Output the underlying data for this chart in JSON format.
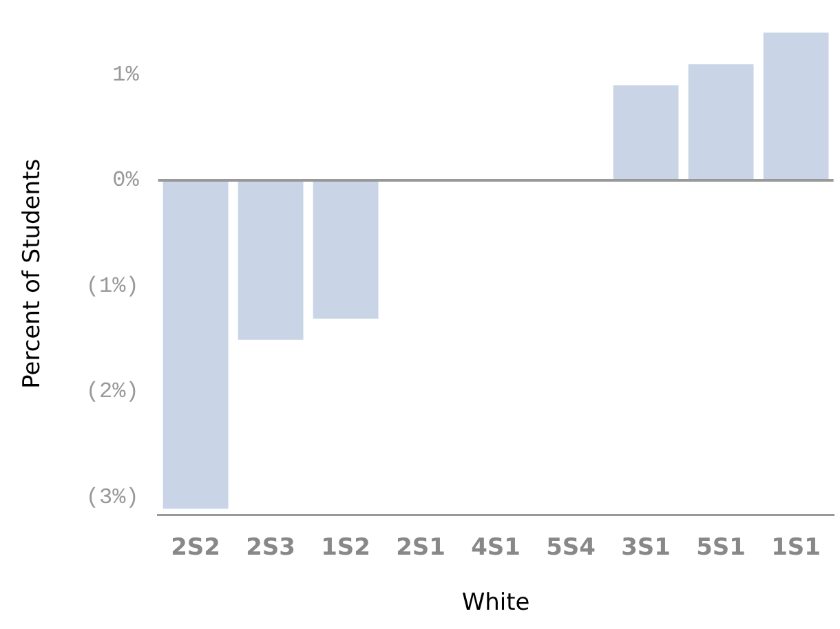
{
  "chart_data": {
    "type": "bar",
    "xlabel": "White",
    "ylabel": "Percent of Students",
    "categories": [
      "2S2",
      "2S3",
      "1S2",
      "2S1",
      "4S1",
      "5S4",
      "3S1",
      "5S1",
      "1S1"
    ],
    "values": [
      -3.11,
      -1.51,
      -1.31,
      0,
      0,
      0,
      0.9,
      1.1,
      1.4
    ],
    "color": "#c9d5e6",
    "ylim": [
      -3.17,
      1.4
    ],
    "yticks": [
      {
        "value": -3,
        "label": "(3%)"
      },
      {
        "value": -2,
        "label": "(2%)"
      },
      {
        "value": -1,
        "label": "(1%)"
      },
      {
        "value": 0,
        "label": "0%"
      },
      {
        "value": 1,
        "label": "1%"
      }
    ],
    "ref_lines": [
      {
        "axis": "y",
        "value": 0,
        "color": "#999999"
      }
    ],
    "grid": false,
    "legend": false
  }
}
